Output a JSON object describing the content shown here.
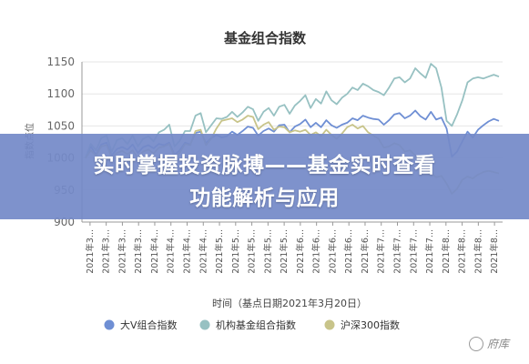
{
  "banner": {
    "line1": "实时掌握投资脉搏——基金实时查看",
    "line2": "功能解析与应用"
  },
  "watermark": "府库",
  "colors": {
    "v": "#6f8fd4",
    "inst": "#97c1c2",
    "hs300": "#c8c48a",
    "grid": "#e6e6e6",
    "axis": "#555555"
  },
  "chart_data": {
    "type": "line",
    "title": "基金组合指数",
    "xlabel": "时间（基点日期2021年3月20日）",
    "ylabel": "指数点位",
    "ylim": [
      900,
      1150
    ],
    "yticks": [
      900,
      950,
      1000,
      1050,
      1100,
      1150
    ],
    "grid": true,
    "legend_position": "bottom",
    "x_tick_labels": [
      "2021年3...",
      "2021年3...",
      "2021年3...",
      "2021年3...",
      "2021年4...",
      "2021年4...",
      "2021年4...",
      "2021年4...",
      "2021年5...",
      "2021年5...",
      "2021年5...",
      "2021年5...",
      "2021年5...",
      "2021年6...",
      "2021年6...",
      "2021年6...",
      "2021年6...",
      "2021年6...",
      "2021年7...",
      "2021年7...",
      "2021年7...",
      "2021年7...",
      "2021年8...",
      "2021年8...",
      "2021年8...",
      "2021年8..."
    ],
    "series": [
      {
        "name": "大V组合指数",
        "color": "#6f8fd4",
        "values": [
          1000,
          1018,
          1005,
          1021,
          1024,
          1004,
          1014,
          1017,
          1013,
          1021,
          1008,
          1017,
          1020,
          1015,
          1022,
          1020,
          1024,
          1005,
          1012,
          1024,
          1021,
          1039,
          1041,
          1023,
          1031,
          1036,
          1032,
          1034,
          1041,
          1036,
          1042,
          1049,
          1047,
          1035,
          1042,
          1046,
          1041,
          1051,
          1052,
          1040,
          1049,
          1053,
          1060,
          1048,
          1055,
          1048,
          1059,
          1051,
          1047,
          1052,
          1055,
          1062,
          1059,
          1066,
          1063,
          1061,
          1060,
          1052,
          1059,
          1068,
          1070,
          1062,
          1066,
          1074,
          1065,
          1060,
          1072,
          1060,
          1063,
          1046,
          1002,
          1010,
          1026,
          1041,
          1032,
          1044,
          1051,
          1057,
          1061,
          1058
        ]
      },
      {
        "name": "机构基金组合指数",
        "color": "#97c1c2",
        "values": [
          1000,
          1022,
          1012,
          1031,
          1035,
          1010,
          1028,
          1031,
          1022,
          1035,
          1018,
          1030,
          1034,
          1026,
          1040,
          1044,
          1052,
          1018,
          1027,
          1042,
          1042,
          1066,
          1070,
          1040,
          1051,
          1062,
          1061,
          1064,
          1072,
          1064,
          1071,
          1080,
          1076,
          1058,
          1072,
          1078,
          1066,
          1080,
          1083,
          1069,
          1082,
          1089,
          1098,
          1078,
          1092,
          1085,
          1104,
          1090,
          1084,
          1094,
          1100,
          1110,
          1106,
          1116,
          1112,
          1106,
          1103,
          1098,
          1110,
          1124,
          1126,
          1118,
          1124,
          1140,
          1132,
          1125,
          1147,
          1140,
          1110,
          1058,
          1050,
          1068,
          1090,
          1118,
          1124,
          1126,
          1124,
          1127,
          1130,
          1127
        ]
      },
      {
        "name": "沪深300指数",
        "color": "#c8c48a",
        "values": [
          1000,
          1012,
          1003,
          1018,
          1020,
          1001,
          1008,
          1011,
          1006,
          1012,
          1000,
          1010,
          1013,
          1007,
          1016,
          1018,
          1022,
          1002,
          1008,
          1022,
          1020,
          1042,
          1044,
          1020,
          1030,
          1046,
          1058,
          1060,
          1062,
          1056,
          1060,
          1066,
          1064,
          1045,
          1052,
          1056,
          1044,
          1049,
          1048,
          1040,
          1043,
          1041,
          1044,
          1036,
          1040,
          1034,
          1044,
          1036,
          1030,
          1038,
          1048,
          1052,
          1046,
          1050,
          1040,
          1035,
          1030,
          1016,
          1018,
          1023,
          1020,
          1010,
          1012,
          1004,
          996,
          985,
          976,
          970,
          972,
          960,
          944,
          952,
          966,
          971,
          968,
          974,
          978,
          980,
          978,
          976
        ]
      }
    ]
  }
}
